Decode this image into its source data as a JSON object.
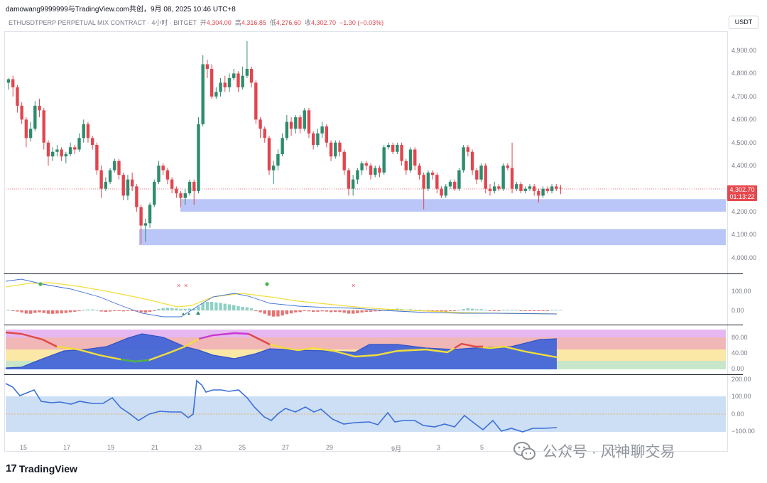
{
  "header": {
    "author_line": "damowang9999999与TradingView.com共创，9月 08, 2025 10:46 UTC+8",
    "symbol": "ETHUSDTPERP PERPETUAL MIX CONTRACT · 4小时 · BITGET",
    "open_label": "开",
    "open": "4,304.00",
    "high_label": "高",
    "high": "4,316.85",
    "low_label": "低",
    "low": "4,276.60",
    "close_label": "收",
    "close": "4,302.70",
    "change": "−1.30 (−0.03%)",
    "currency_button": "USDT"
  },
  "price_axis": [
    "4,900.00",
    "4,800.00",
    "4,700.00",
    "4,600.00",
    "4,500.00",
    "4,400.00",
    "4,300.00",
    "4,200.00",
    "4,100.00",
    "4,000.00"
  ],
  "last_price": {
    "price": "4,302.70",
    "countdown": "01:13:22"
  },
  "pane2_axis": [
    "100.00",
    "0.00"
  ],
  "pane3_axis": [
    "80.00",
    "40.00",
    "0.00"
  ],
  "pane4_axis": [
    "200.00",
    "100.00",
    "0.00",
    "−100.00"
  ],
  "time_axis": [
    "15",
    "17",
    "19",
    "21",
    "23",
    "25",
    "27",
    "29",
    "9月",
    "3",
    "5",
    "9",
    "11"
  ],
  "footer": {
    "logo_text": "TradingView",
    "logo_mark": "17",
    "watermark": "公众号 · 风神聊交易"
  },
  "colors": {
    "up": "#26a69a",
    "up_dark": "#2e8b6e",
    "down": "#e0464f",
    "zone": "#a9b8f5",
    "band_blue": "#c6dcf3",
    "line_blue": "#3d6fd6",
    "line_yellow": "#f2de3a"
  },
  "chart_data": {
    "type": "candlestick",
    "interval": "4小时",
    "price_range": [
      3940,
      4990
    ],
    "candles": [
      [
        4760,
        4775,
        4730,
        4780
      ],
      [
        4775,
        4740,
        4700,
        4790
      ],
      [
        4740,
        4660,
        4630,
        4750
      ],
      [
        4660,
        4600,
        4580,
        4675
      ],
      [
        4600,
        4520,
        4480,
        4610
      ],
      [
        4520,
        4560,
        4505,
        4590
      ],
      [
        4560,
        4660,
        4550,
        4680
      ],
      [
        4660,
        4640,
        4610,
        4690
      ],
      [
        4640,
        4500,
        4470,
        4650
      ],
      [
        4500,
        4440,
        4400,
        4510
      ],
      [
        4440,
        4460,
        4420,
        4480
      ],
      [
        4460,
        4470,
        4440,
        4490
      ],
      [
        4470,
        4440,
        4420,
        4480
      ],
      [
        4440,
        4450,
        4410,
        4460
      ],
      [
        4450,
        4480,
        4440,
        4500
      ],
      [
        4480,
        4470,
        4450,
        4490
      ],
      [
        4470,
        4520,
        4460,
        4540
      ],
      [
        4520,
        4580,
        4500,
        4600
      ],
      [
        4580,
        4520,
        4500,
        4590
      ],
      [
        4520,
        4490,
        4470,
        4530
      ],
      [
        4490,
        4380,
        4360,
        4500
      ],
      [
        4380,
        4300,
        4260,
        4400
      ],
      [
        4300,
        4330,
        4290,
        4350
      ],
      [
        4330,
        4380,
        4320,
        4390
      ],
      [
        4380,
        4420,
        4370,
        4430
      ],
      [
        4420,
        4360,
        4340,
        4430
      ],
      [
        4360,
        4270,
        4250,
        4370
      ],
      [
        4270,
        4340,
        4250,
        4360
      ],
      [
        4340,
        4310,
        4290,
        4370
      ],
      [
        4310,
        4220,
        4200,
        4320
      ],
      [
        4220,
        4140,
        4060,
        4230
      ],
      [
        4140,
        4150,
        4070,
        4170
      ],
      [
        4150,
        4230,
        4130,
        4240
      ],
      [
        4230,
        4330,
        4220,
        4340
      ],
      [
        4330,
        4400,
        4320,
        4420
      ],
      [
        4400,
        4380,
        4360,
        4410
      ],
      [
        4380,
        4340,
        4320,
        4390
      ],
      [
        4340,
        4300,
        4280,
        4350
      ],
      [
        4300,
        4280,
        4260,
        4310
      ],
      [
        4280,
        4260,
        4220,
        4290
      ],
      [
        4260,
        4280,
        4230,
        4300
      ],
      [
        4280,
        4330,
        4270,
        4340
      ],
      [
        4330,
        4290,
        4230,
        4340
      ],
      [
        4290,
        4580,
        4280,
        4610
      ],
      [
        4580,
        4840,
        4570,
        4880
      ],
      [
        4840,
        4820,
        4780,
        4860
      ],
      [
        4820,
        4700,
        4690,
        4840
      ],
      [
        4700,
        4720,
        4690,
        4740
      ],
      [
        4720,
        4760,
        4700,
        4780
      ],
      [
        4760,
        4740,
        4720,
        4790
      ],
      [
        4740,
        4780,
        4720,
        4800
      ],
      [
        4780,
        4800,
        4770,
        4820
      ],
      [
        4800,
        4740,
        4720,
        4810
      ],
      [
        4740,
        4790,
        4730,
        4830
      ],
      [
        4790,
        4820,
        4780,
        4940
      ],
      [
        4820,
        4760,
        4740,
        4830
      ],
      [
        4760,
        4600,
        4580,
        4770
      ],
      [
        4600,
        4560,
        4520,
        4610
      ],
      [
        4560,
        4520,
        4500,
        4570
      ],
      [
        4520,
        4380,
        4360,
        4530
      ],
      [
        4380,
        4400,
        4320,
        4420
      ],
      [
        4400,
        4450,
        4380,
        4470
      ],
      [
        4450,
        4520,
        4440,
        4540
      ],
      [
        4520,
        4590,
        4510,
        4620
      ],
      [
        4590,
        4560,
        4530,
        4610
      ],
      [
        4560,
        4610,
        4540,
        4620
      ],
      [
        4610,
        4560,
        4540,
        4620
      ],
      [
        4560,
        4640,
        4550,
        4650
      ],
      [
        4640,
        4540,
        4520,
        4650
      ],
      [
        4540,
        4490,
        4470,
        4550
      ],
      [
        4490,
        4540,
        4480,
        4560
      ],
      [
        4540,
        4570,
        4520,
        4590
      ],
      [
        4570,
        4500,
        4480,
        4580
      ],
      [
        4500,
        4440,
        4420,
        4510
      ],
      [
        4440,
        4500,
        4430,
        4510
      ],
      [
        4500,
        4460,
        4440,
        4510
      ],
      [
        4460,
        4380,
        4360,
        4470
      ],
      [
        4380,
        4300,
        4270,
        4390
      ],
      [
        4300,
        4340,
        4270,
        4360
      ],
      [
        4340,
        4380,
        4320,
        4390
      ],
      [
        4380,
        4410,
        4360,
        4420
      ],
      [
        4410,
        4400,
        4380,
        4420
      ],
      [
        4400,
        4360,
        4340,
        4410
      ],
      [
        4360,
        4390,
        4350,
        4400
      ],
      [
        4390,
        4370,
        4350,
        4400
      ],
      [
        4370,
        4480,
        4360,
        4490
      ],
      [
        4480,
        4490,
        4470,
        4500
      ],
      [
        4490,
        4460,
        4450,
        4500
      ],
      [
        4460,
        4490,
        4450,
        4500
      ],
      [
        4490,
        4420,
        4400,
        4500
      ],
      [
        4420,
        4380,
        4360,
        4430
      ],
      [
        4380,
        4470,
        4370,
        4480
      ],
      [
        4470,
        4400,
        4380,
        4480
      ],
      [
        4400,
        4360,
        4340,
        4410
      ],
      [
        4360,
        4300,
        4210,
        4370
      ],
      [
        4300,
        4370,
        4290,
        4380
      ],
      [
        4370,
        4360,
        4340,
        4380
      ],
      [
        4360,
        4300,
        4280,
        4370
      ],
      [
        4300,
        4270,
        4260,
        4310
      ],
      [
        4270,
        4310,
        4260,
        4320
      ],
      [
        4310,
        4330,
        4300,
        4340
      ],
      [
        4330,
        4300,
        4290,
        4340
      ],
      [
        4300,
        4380,
        4290,
        4390
      ],
      [
        4380,
        4480,
        4370,
        4490
      ],
      [
        4480,
        4460,
        4440,
        4490
      ],
      [
        4460,
        4380,
        4360,
        4470
      ],
      [
        4380,
        4340,
        4320,
        4390
      ],
      [
        4340,
        4400,
        4330,
        4410
      ],
      [
        4400,
        4300,
        4280,
        4410
      ],
      [
        4300,
        4290,
        4270,
        4320
      ],
      [
        4290,
        4310,
        4280,
        4330
      ],
      [
        4310,
        4300,
        4290,
        4320
      ],
      [
        4300,
        4400,
        4290,
        4410
      ],
      [
        4400,
        4390,
        4380,
        4410
      ],
      [
        4390,
        4300,
        4280,
        4500
      ],
      [
        4300,
        4320,
        4290,
        4330
      ],
      [
        4320,
        4290,
        4280,
        4330
      ],
      [
        4290,
        4300,
        4280,
        4310
      ],
      [
        4300,
        4310,
        4290,
        4320
      ],
      [
        4310,
        4290,
        4270,
        4320
      ],
      [
        4290,
        4270,
        4240,
        4300
      ],
      [
        4270,
        4300,
        4260,
        4310
      ],
      [
        4300,
        4290,
        4280,
        4310
      ],
      [
        4290,
        4310,
        4280,
        4320
      ],
      [
        4310,
        4300,
        4290,
        4320
      ],
      [
        4304,
        4302.7,
        4276.6,
        4316.85
      ]
    ],
    "support_zones": [
      [
        4200,
        4255
      ],
      [
        4055,
        4125
      ]
    ],
    "last_price": 4302.7
  }
}
